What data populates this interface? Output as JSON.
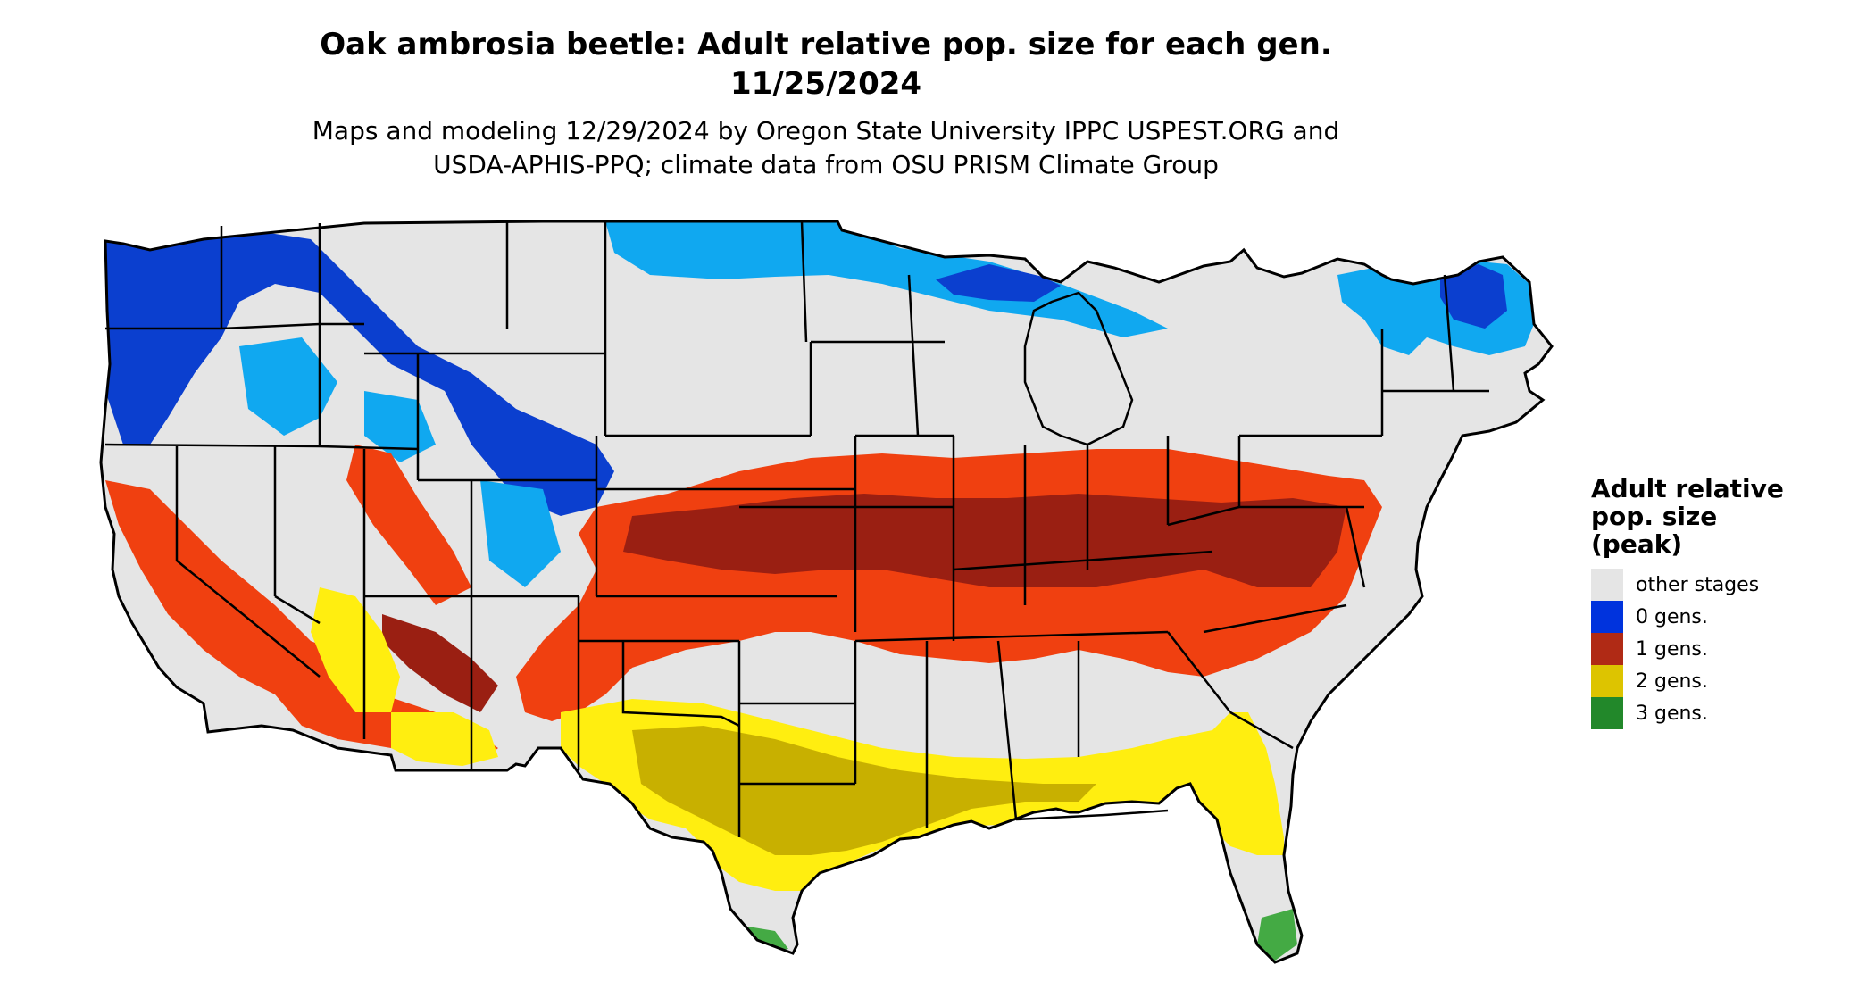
{
  "title": {
    "line1": "Oak ambrosia beetle: Adult relative pop. size for each gen.",
    "line2": "11/25/2024"
  },
  "subtitle": {
    "line1": "Maps and modeling 12/29/2024 by Oregon State University IPPC USPEST.ORG and",
    "line2": "USDA-APHIS-PPQ; climate data from OSU PRISM Climate Group"
  },
  "legend": {
    "title_line1": "Adult relative",
    "title_line2": "pop. size",
    "title_line3": "(peak)",
    "items": [
      {
        "label": "other stages",
        "color": "#e5e5e5"
      },
      {
        "label": "0 gens.",
        "color": "#0033dd"
      },
      {
        "label": "1 gens.",
        "color": "#b02a15"
      },
      {
        "label": "2 gens.",
        "color": "#ddc400"
      },
      {
        "label": "3 gens.",
        "color": "#22882a"
      }
    ]
  },
  "map_colors": {
    "land": "#e5e5e5",
    "zero_dark": "#0b3fcf",
    "zero_light": "#10a8f0",
    "one_bright": "#f04010",
    "one_dark": "#9a1f12",
    "two_yellow": "#ffee10",
    "two_olive": "#c8b000",
    "three_green": "#44aa44",
    "border": "#000000"
  }
}
